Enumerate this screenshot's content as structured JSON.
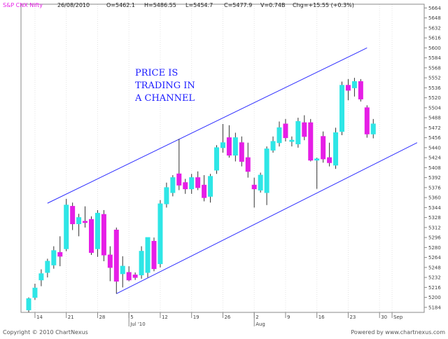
{
  "header": {
    "symbol": "S&P CNX Nifty",
    "date": "26/08/2010",
    "open": "O=5462.1",
    "high": "H=5486.55",
    "low": "L=5454.7",
    "close": "C=5477.9",
    "volume": "V=0.74B",
    "change": "Chg=+15.55 (+0.3%)"
  },
  "footer": {
    "copyright": "Copyright © 2010 ChartNexus",
    "powered": "Powered by www.chartnexus.com"
  },
  "colors": {
    "up": "#2ee6e6",
    "down": "#e61ee6",
    "channel": "#3030ff",
    "axis": "#888888",
    "annotation": "#1a1aff"
  },
  "chart_data": {
    "type": "candlestick",
    "title": "S&P CNX Nifty",
    "annotation": [
      "PRICE IS",
      "TRADING IN",
      "A CHANNEL"
    ],
    "ylim": [
      5176,
      5670
    ],
    "y_ticks": [
      5184,
      5200,
      5216,
      5232,
      5248,
      5264,
      5280,
      5296,
      5312,
      5328,
      5344,
      5360,
      5376,
      5392,
      5408,
      5424,
      5440,
      5456,
      5472,
      5488,
      5504,
      5520,
      5536,
      5552,
      5568,
      5584,
      5600,
      5616,
      5632,
      5648,
      5664
    ],
    "x_ticks": [
      {
        "label": "14",
        "day": 1
      },
      {
        "label": "21",
        "day": 6
      },
      {
        "label": "28",
        "day": 11
      },
      {
        "label": "5",
        "day": 16
      },
      {
        "label": "12",
        "day": 21
      },
      {
        "label": "19",
        "day": 26
      },
      {
        "label": "26",
        "day": 31
      },
      {
        "label": "2",
        "day": 36
      },
      {
        "label": "9",
        "day": 41
      },
      {
        "label": "16",
        "day": 46
      },
      {
        "label": "23",
        "day": 51
      },
      {
        "label": "30",
        "day": 56
      },
      {
        "label": "Sep",
        "day": 58
      }
    ],
    "month_labels": [
      {
        "label": "Jul '10",
        "day": 16
      },
      {
        "label": "Aug",
        "day": 36
      }
    ],
    "candles": [
      {
        "d": 0,
        "o": 5180,
        "h": 5200,
        "l": 5176,
        "c": 5198
      },
      {
        "d": 1,
        "o": 5200,
        "h": 5222,
        "l": 5196,
        "c": 5215
      },
      {
        "d": 2,
        "o": 5228,
        "h": 5245,
        "l": 5218,
        "c": 5238
      },
      {
        "d": 3,
        "o": 5240,
        "h": 5262,
        "l": 5232,
        "c": 5258
      },
      {
        "d": 4,
        "o": 5252,
        "h": 5282,
        "l": 5246,
        "c": 5275
      },
      {
        "d": 5,
        "o": 5272,
        "h": 5298,
        "l": 5250,
        "c": 5266
      },
      {
        "d": 6,
        "o": 5278,
        "h": 5358,
        "l": 5274,
        "c": 5348
      },
      {
        "d": 7,
        "o": 5346,
        "h": 5352,
        "l": 5308,
        "c": 5318
      },
      {
        "d": 8,
        "o": 5318,
        "h": 5334,
        "l": 5298,
        "c": 5328
      },
      {
        "d": 9,
        "o": 5322,
        "h": 5346,
        "l": 5312,
        "c": 5320
      },
      {
        "d": 10,
        "o": 5325,
        "h": 5330,
        "l": 5268,
        "c": 5272
      },
      {
        "d": 11,
        "o": 5278,
        "h": 5340,
        "l": 5265,
        "c": 5335
      },
      {
        "d": 12,
        "o": 5333,
        "h": 5340,
        "l": 5258,
        "c": 5268
      },
      {
        "d": 13,
        "o": 5268,
        "h": 5282,
        "l": 5226,
        "c": 5248
      },
      {
        "d": 14,
        "o": 5308,
        "h": 5312,
        "l": 5206,
        "c": 5226
      },
      {
        "d": 15,
        "o": 5238,
        "h": 5266,
        "l": 5216,
        "c": 5250
      },
      {
        "d": 16,
        "o": 5240,
        "h": 5250,
        "l": 5226,
        "c": 5228
      },
      {
        "d": 17,
        "o": 5236,
        "h": 5240,
        "l": 5228,
        "c": 5232
      },
      {
        "d": 18,
        "o": 5236,
        "h": 5282,
        "l": 5230,
        "c": 5274
      },
      {
        "d": 19,
        "o": 5240,
        "h": 5296,
        "l": 5232,
        "c": 5296
      },
      {
        "d": 20,
        "o": 5290,
        "h": 5296,
        "l": 5242,
        "c": 5246
      },
      {
        "d": 21,
        "o": 5254,
        "h": 5356,
        "l": 5248,
        "c": 5350
      },
      {
        "d": 22,
        "o": 5350,
        "h": 5384,
        "l": 5344,
        "c": 5376
      },
      {
        "d": 23,
        "o": 5368,
        "h": 5396,
        "l": 5362,
        "c": 5392
      },
      {
        "d": 24,
        "o": 5398,
        "h": 5454,
        "l": 5372,
        "c": 5380
      },
      {
        "d": 25,
        "o": 5384,
        "h": 5390,
        "l": 5366,
        "c": 5374
      },
      {
        "d": 26,
        "o": 5374,
        "h": 5398,
        "l": 5366,
        "c": 5392
      },
      {
        "d": 27,
        "o": 5392,
        "h": 5402,
        "l": 5372,
        "c": 5376
      },
      {
        "d": 28,
        "o": 5380,
        "h": 5396,
        "l": 5354,
        "c": 5360
      },
      {
        "d": 29,
        "o": 5362,
        "h": 5398,
        "l": 5352,
        "c": 5394
      },
      {
        "d": 30,
        "o": 5404,
        "h": 5444,
        "l": 5398,
        "c": 5440
      },
      {
        "d": 31,
        "o": 5440,
        "h": 5478,
        "l": 5432,
        "c": 5448
      },
      {
        "d": 32,
        "o": 5456,
        "h": 5476,
        "l": 5424,
        "c": 5428
      },
      {
        "d": 33,
        "o": 5428,
        "h": 5464,
        "l": 5418,
        "c": 5456
      },
      {
        "d": 34,
        "o": 5448,
        "h": 5458,
        "l": 5410,
        "c": 5418
      },
      {
        "d": 35,
        "o": 5424,
        "h": 5448,
        "l": 5392,
        "c": 5402
      },
      {
        "d": 36,
        "o": 5380,
        "h": 5392,
        "l": 5344,
        "c": 5374
      },
      {
        "d": 37,
        "o": 5372,
        "h": 5400,
        "l": 5368,
        "c": 5396
      },
      {
        "d": 38,
        "o": 5368,
        "h": 5442,
        "l": 5348,
        "c": 5438
      },
      {
        "d": 39,
        "o": 5436,
        "h": 5458,
        "l": 5432,
        "c": 5450
      },
      {
        "d": 40,
        "o": 5448,
        "h": 5482,
        "l": 5442,
        "c": 5472
      },
      {
        "d": 41,
        "o": 5478,
        "h": 5486,
        "l": 5450,
        "c": 5456
      },
      {
        "d": 42,
        "o": 5450,
        "h": 5458,
        "l": 5442,
        "c": 5452
      },
      {
        "d": 43,
        "o": 5446,
        "h": 5488,
        "l": 5440,
        "c": 5482
      },
      {
        "d": 44,
        "o": 5480,
        "h": 5492,
        "l": 5452,
        "c": 5458
      },
      {
        "d": 45,
        "o": 5480,
        "h": 5486,
        "l": 5418,
        "c": 5420
      },
      {
        "d": 46,
        "o": 5420,
        "h": 5424,
        "l": 5374,
        "c": 5422
      },
      {
        "d": 47,
        "o": 5458,
        "h": 5466,
        "l": 5416,
        "c": 5422
      },
      {
        "d": 48,
        "o": 5424,
        "h": 5448,
        "l": 5410,
        "c": 5416
      },
      {
        "d": 49,
        "o": 5412,
        "h": 5472,
        "l": 5406,
        "c": 5464
      },
      {
        "d": 50,
        "o": 5466,
        "h": 5546,
        "l": 5460,
        "c": 5540
      },
      {
        "d": 51,
        "o": 5540,
        "h": 5550,
        "l": 5516,
        "c": 5532
      },
      {
        "d": 52,
        "o": 5536,
        "h": 5552,
        "l": 5522,
        "c": 5546
      },
      {
        "d": 53,
        "o": 5546,
        "h": 5550,
        "l": 5514,
        "c": 5518
      },
      {
        "d": 54,
        "o": 5504,
        "h": 5508,
        "l": 5456,
        "c": 5462
      },
      {
        "d": 55,
        "o": 5462,
        "h": 5486,
        "l": 5455,
        "c": 5478
      }
    ],
    "channel_lines": [
      {
        "name": "upper",
        "x1": 3,
        "y1": 5351,
        "x2": 54,
        "y2": 5600
      },
      {
        "name": "lower",
        "x1": 14,
        "y1": 5206,
        "x2": 62,
        "y2": 5448
      }
    ]
  }
}
